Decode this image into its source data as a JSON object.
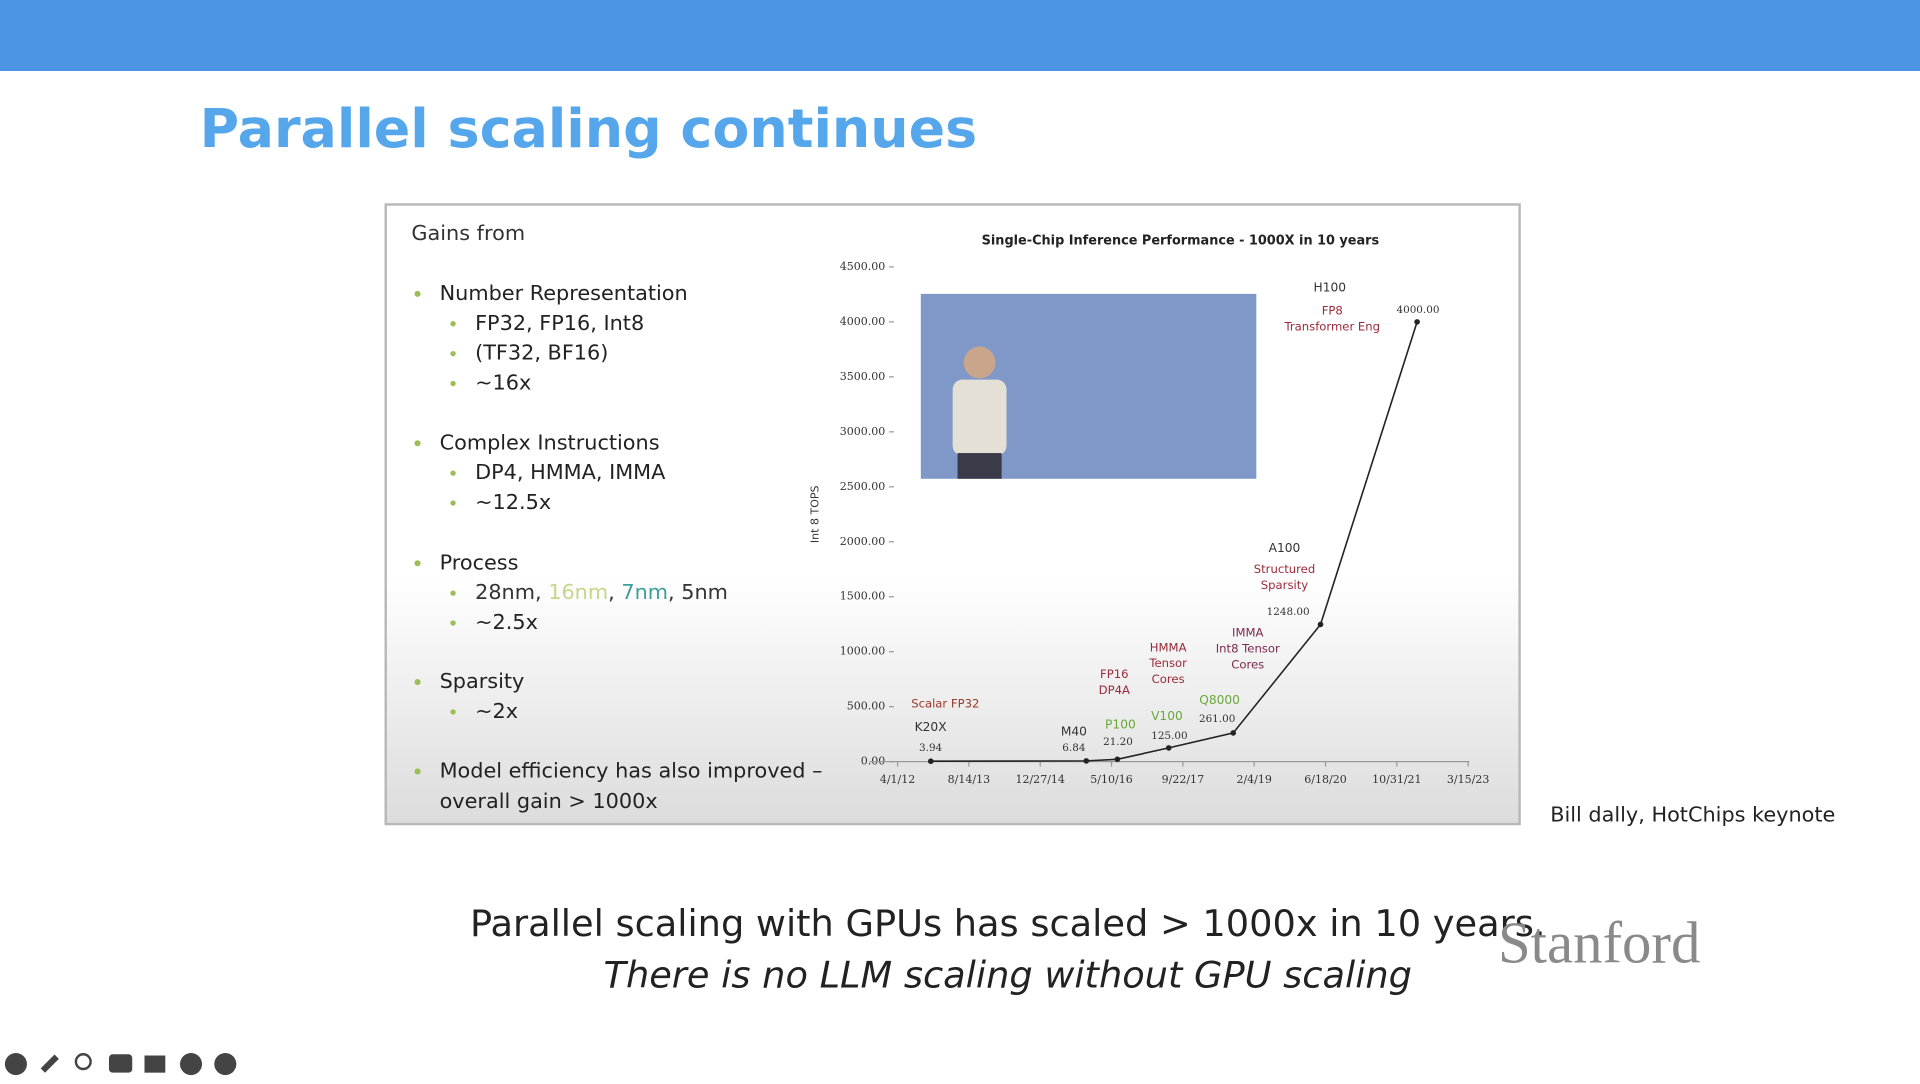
{
  "header": {
    "title": "Parallel scaling continues"
  },
  "panel": {
    "heading": "Gains from",
    "bullets": [
      {
        "lines": [
          "Number Representation"
        ],
        "items": [
          "FP32, FP16, Int8",
          "(TF32, BF16)",
          "~16x"
        ]
      },
      {
        "lines": [
          "Complex Instructions"
        ],
        "items": [
          "DP4, HMMA, IMMA",
          "~12.5x"
        ]
      },
      {
        "lines": [
          "Process"
        ],
        "items": [
          {
            "parts": [
              {
                "text": "28nm, ",
                "color": "#333333"
              },
              {
                "text": "16nm",
                "color": "#c5d68a"
              },
              {
                "text": ", ",
                "color": "#333333"
              },
              {
                "text": "7nm",
                "color": "#3f9f9a"
              },
              {
                "text": ", 5nm",
                "color": "#333333"
              }
            ]
          },
          "~2.5x"
        ]
      },
      {
        "lines": [
          "Sparsity"
        ],
        "items": [
          "~2x"
        ]
      },
      {
        "lines": [
          "Model efficiency has also improved –",
          "overall gain > 1000x"
        ],
        "items": []
      }
    ]
  },
  "chart_data": {
    "type": "line",
    "title": "Single-Chip Inference Performance - 1000X in 10 years",
    "y_label": "Int 8 TOPS",
    "x": [
      "11/20/12",
      "11/15/15",
      "6/20/16",
      "6/15/17",
      "9/10/18",
      "5/14/20",
      "3/22/22"
    ],
    "values": [
      3.94,
      6.84,
      21.2,
      125,
      261,
      1248,
      4000
    ],
    "value_labels": [
      "3.94",
      "6.84",
      "21.20",
      "125.00",
      "261.00",
      "1248.00",
      "4000.00"
    ],
    "point_labels": [
      "K20X",
      "M40",
      "P100",
      "V100",
      "Q8000",
      "A100",
      "H100"
    ],
    "label_colors": [
      "#333333",
      "#333333",
      "#6aa83a",
      "#6aa83a",
      "#6aa83a",
      "#333333",
      "#333333"
    ],
    "color": "#222222",
    "xlim": [
      "4/1/12",
      "3/15/23"
    ],
    "xticks": [
      "4/1/12",
      "8/14/13",
      "12/27/14",
      "5/10/16",
      "9/22/17",
      "2/4/19",
      "6/18/20",
      "10/31/21",
      "3/15/23"
    ],
    "ylim": [
      0,
      4500
    ],
    "yticks": [
      {
        "value": 0,
        "label": "0.00"
      },
      {
        "value": 500,
        "label": "500.00"
      },
      {
        "value": 1000,
        "label": "1000.00"
      },
      {
        "value": 1500,
        "label": "1500.00"
      },
      {
        "value": 2000,
        "label": "2000.00"
      },
      {
        "value": 2500,
        "label": "2500.00"
      },
      {
        "value": 3000,
        "label": "3000.00"
      },
      {
        "value": 3500,
        "label": "3500.00"
      },
      {
        "value": 4000,
        "label": "4000.00"
      },
      {
        "value": 4500,
        "label": "4500.00"
      }
    ],
    "annotations": [
      {
        "lines": [
          "Scalar FP32"
        ],
        "color": "#9a3a2a"
      },
      {
        "lines": [
          "FP16",
          "DP4A"
        ],
        "color": "#9a2a3a"
      },
      {
        "lines": [
          "HMMA",
          "Tensor",
          "Cores"
        ],
        "color": "#9a2a3a"
      },
      {
        "lines": [
          "IMMA",
          "Int8 Tensor",
          "Cores"
        ],
        "color": "#7a2a4a"
      },
      {
        "lines": [
          "Structured",
          "Sparsity"
        ],
        "color": "#9a2a3a"
      },
      {
        "lines": [
          "FP8",
          "Transformer Eng"
        ],
        "color": "#9a2a3a"
      }
    ]
  },
  "source": "Bill dally, HotChips keynote",
  "footer": {
    "line1": "Parallel scaling with GPUs has scaled > 1000x in 10 years.",
    "line2": "There is no LLM scaling without GPU scaling",
    "logo": "Stanford"
  }
}
